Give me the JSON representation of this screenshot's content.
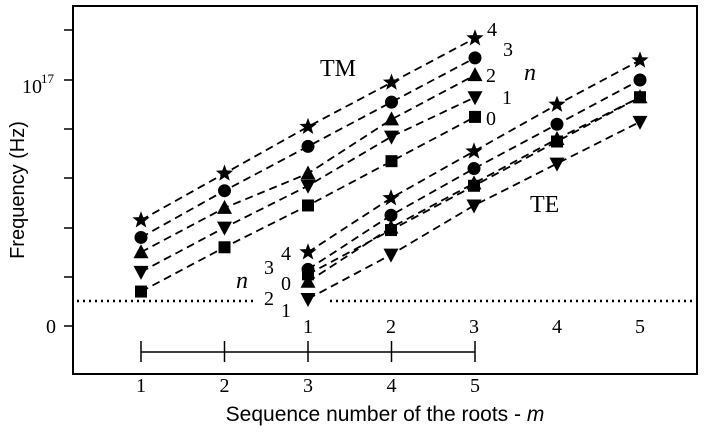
{
  "chart_data": {
    "type": "line",
    "xlabel": "Sequence number of the roots - m",
    "xlabel_var": "m",
    "ylabel": "Frequency  (Hz)",
    "ytick_labels": {
      "top_mantissa": "10",
      "top_exponent": "17",
      "bottom": "0"
    },
    "x_ticks": [
      "1",
      "2",
      "3",
      "4",
      "5"
    ],
    "grid": false,
    "dotted_reference_line": true,
    "groups": [
      {
        "name": "TM",
        "n_label": "n",
        "series": [
          {
            "name": "4",
            "marker": "star",
            "x": [
              1,
              2,
              3,
              4,
              5
            ],
            "y": [
              0.43,
              0.62,
              0.81,
              0.99,
              1.17
            ]
          },
          {
            "name": "3",
            "marker": "circle",
            "x": [
              1,
              2,
              3,
              4,
              5
            ],
            "y": [
              0.36,
              0.55,
              0.73,
              0.91,
              1.09
            ]
          },
          {
            "name": "2",
            "marker": "triangle-up",
            "x": [
              1,
              2,
              3,
              4,
              5
            ],
            "y": [
              0.3,
              0.48,
              0.62,
              0.84,
              1.02
            ]
          },
          {
            "name": "1",
            "marker": "triangle-down",
            "x": [
              1,
              2,
              3,
              4,
              5
            ],
            "y": [
              0.22,
              0.4,
              0.57,
              0.77,
              0.93
            ]
          },
          {
            "name": "0",
            "marker": "square",
            "x": [
              1,
              2,
              3,
              4,
              5
            ],
            "y": [
              0.14,
              0.32,
              0.49,
              0.67,
              0.85
            ]
          }
        ]
      },
      {
        "name": "TE",
        "n_label": "n",
        "series": [
          {
            "name": "4",
            "marker": "star",
            "x": [
              1,
              2,
              3,
              4,
              5
            ],
            "y": [
              0.3,
              0.52,
              0.71,
              0.9,
              1.08
            ]
          },
          {
            "name": "3",
            "marker": "circle",
            "x": [
              1,
              2,
              3,
              4,
              5
            ],
            "y": [
              0.23,
              0.45,
              0.64,
              0.82,
              1.0
            ]
          },
          {
            "name": "0",
            "marker": "triangle-up",
            "x": [
              1,
              2,
              3,
              4,
              5
            ],
            "y": [
              0.18,
              0.4,
              0.58,
              0.76,
              0.93
            ]
          },
          {
            "name": "2",
            "marker": "square",
            "x": [
              1,
              2,
              3,
              4,
              5
            ],
            "y": [
              0.21,
              0.39,
              0.57,
              0.75,
              0.93
            ]
          },
          {
            "name": "1",
            "marker": "triangle-down",
            "x": [
              1,
              2,
              3,
              4,
              5
            ],
            "y": [
              0.11,
              0.29,
              0.49,
              0.66,
              0.83
            ]
          }
        ]
      }
    ],
    "te_x_tick_labels": [
      "1",
      "2",
      "3",
      "4",
      "5"
    ]
  }
}
